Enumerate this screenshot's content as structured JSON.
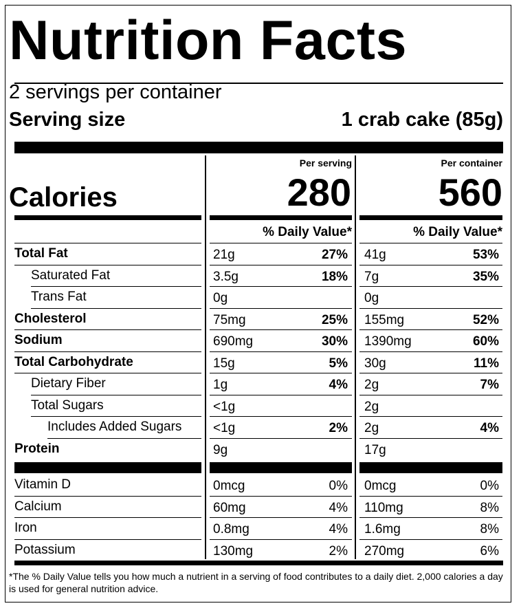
{
  "title": "Nutrition Facts",
  "servings_per_container": "2 servings per container",
  "serving_size_label": "Serving size",
  "serving_size_value": "1 crab cake (85g)",
  "columns": {
    "per_serving_label": "Per serving",
    "per_container_label": "Per container",
    "calories_label": "Calories",
    "calories_serving": "280",
    "calories_container": "560",
    "daily_value_header": "% Daily Value*"
  },
  "nutrients": [
    {
      "name": "Total Fat",
      "bold": true,
      "indent": 0,
      "serving_amount": "21g",
      "serving_dv": "27%",
      "container_amount": "41g",
      "container_dv": "53%"
    },
    {
      "name": "Saturated Fat",
      "bold": false,
      "indent": 1,
      "serving_amount": "3.5g",
      "serving_dv": "18%",
      "container_amount": "7g",
      "container_dv": "35%"
    },
    {
      "name": "Trans Fat",
      "bold": false,
      "indent": 1,
      "serving_amount": "0g",
      "serving_dv": "",
      "container_amount": "0g",
      "container_dv": ""
    },
    {
      "name": "Cholesterol",
      "bold": true,
      "indent": 0,
      "serving_amount": "75mg",
      "serving_dv": "25%",
      "container_amount": "155mg",
      "container_dv": "52%"
    },
    {
      "name": "Sodium",
      "bold": true,
      "indent": 0,
      "serving_amount": "690mg",
      "serving_dv": "30%",
      "container_amount": "1390mg",
      "container_dv": "60%"
    },
    {
      "name": "Total Carbohydrate",
      "bold": true,
      "indent": 0,
      "serving_amount": "15g",
      "serving_dv": "5%",
      "container_amount": "30g",
      "container_dv": "11%"
    },
    {
      "name": "Dietary Fiber",
      "bold": false,
      "indent": 1,
      "serving_amount": "1g",
      "serving_dv": "4%",
      "container_amount": "2g",
      "container_dv": "7%"
    },
    {
      "name": "Total Sugars",
      "bold": false,
      "indent": 1,
      "serving_amount": "<1g",
      "serving_dv": "",
      "container_amount": "2g",
      "container_dv": ""
    },
    {
      "name": "Includes Added Sugars",
      "bold": false,
      "indent": 2,
      "serving_amount": "<1g",
      "serving_dv": "2%",
      "container_amount": "2g",
      "container_dv": "4%"
    },
    {
      "name": "Protein",
      "bold": true,
      "indent": 0,
      "serving_amount": "9g",
      "serving_dv": "",
      "container_amount": "17g",
      "container_dv": ""
    }
  ],
  "vitamins": [
    {
      "name": "Vitamin D",
      "serving_amount": "0mcg",
      "serving_dv": "0%",
      "container_amount": "0mcg",
      "container_dv": "0%"
    },
    {
      "name": "Calcium",
      "serving_amount": "60mg",
      "serving_dv": "4%",
      "container_amount": "110mg",
      "container_dv": "8%"
    },
    {
      "name": "Iron",
      "serving_amount": "0.8mg",
      "serving_dv": "4%",
      "container_amount": "1.6mg",
      "container_dv": "8%"
    },
    {
      "name": "Potassium",
      "serving_amount": "130mg",
      "serving_dv": "2%",
      "container_amount": "270mg",
      "container_dv": "6%"
    }
  ],
  "footnote": "*The % Daily Value tells you how much a nutrient in a serving of food contributes to a daily diet. 2,000 calories a day is used for general nutrition advice."
}
